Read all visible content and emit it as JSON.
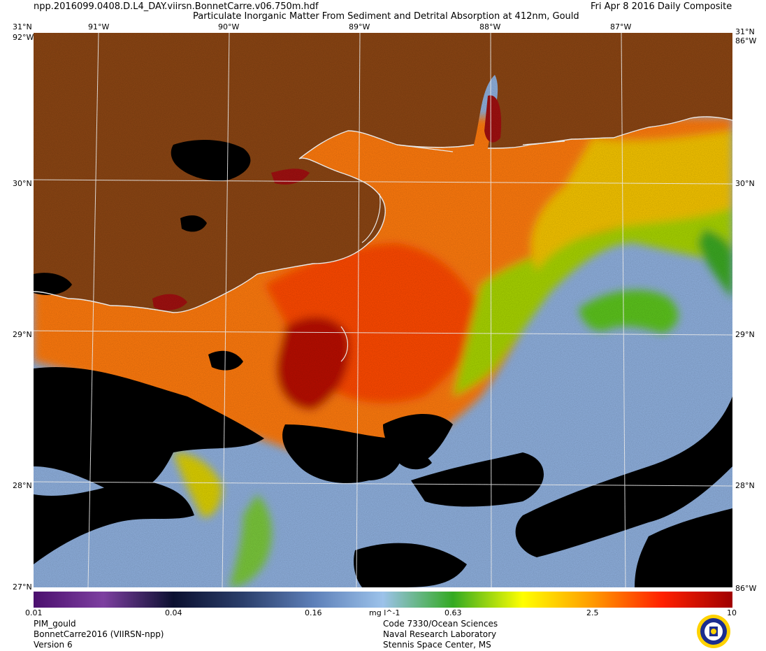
{
  "header": {
    "filename": "npp.2016099.0408.D.L4_DAY.viirsn.BonnetCarre.v06.750m.hdf",
    "title": "Particulate Inorganic Matter From Sediment and Detrital Absorption at 412nm, Gould",
    "date": "Fri Apr  8 2016 Daily Composite"
  },
  "map": {
    "lon_labels": [
      "91°W",
      "90°W",
      "89°W",
      "88°W",
      "87°W"
    ],
    "lat_labels": [
      "30°N",
      "29°N",
      "28°N"
    ],
    "corner_top_left": "31°N",
    "corner_top_right": "31°N",
    "corner_lon": "92°W",
    "corner_lon_right": "86°W",
    "corner_bottom_left": "27°N",
    "corner_bottom_right": "86°W",
    "colors": {
      "land": "#8b4513",
      "no_data": "#000000",
      "grid": "#ffffff"
    }
  },
  "colorbar": {
    "ticks": [
      "0.01",
      "0.04",
      "0.16",
      "mg l^-1",
      "0.63",
      "2.5",
      "10"
    ],
    "stops": [
      "#4b0f6e",
      "#7d3fa0",
      "#0b1030",
      "#2b3f6b",
      "#5d7fb8",
      "#9cc2ea",
      "#33aa22",
      "#ffff00",
      "#ff9a00",
      "#ff2000",
      "#a00000"
    ]
  },
  "footer": {
    "left": [
      "PIM_gould",
      "BonnetCarre2016 (VIIRSN-npp)",
      "Version 6"
    ],
    "center": [
      "Code 7330/Ocean Sciences",
      "Naval Research Laboratory",
      "Stennis Space Center, MS"
    ],
    "seal_name": "navy-seal-icon"
  }
}
